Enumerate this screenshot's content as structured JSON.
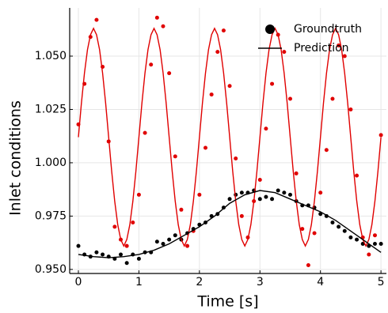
{
  "chart_data": {
    "type": "line",
    "x_label": "Time [s]",
    "y_label": "Inlet conditions",
    "xlim": [
      -0.144,
      5.09
    ],
    "ylim": [
      0.9481,
      1.0726
    ],
    "xticks": [
      0,
      1,
      2,
      3,
      4,
      5
    ],
    "yticks": [
      {
        "value": 0.95,
        "label": "0.950"
      },
      {
        "value": 0.975,
        "label": "0.975"
      },
      {
        "value": 1.0,
        "label": "1.000"
      },
      {
        "value": 1.025,
        "label": "1.025"
      },
      {
        "value": 1.05,
        "label": "1.050"
      }
    ],
    "grid": true,
    "legend": "upper right",
    "series": [
      {
        "type": "scatter",
        "color": "#e00000",
        "x": [
          0,
          0.1,
          0.2,
          0.3,
          0.4,
          0.5,
          0.6,
          0.7,
          0.8,
          0.9,
          1,
          1.1,
          1.2,
          1.3,
          1.4,
          1.5,
          1.6,
          1.7,
          1.8,
          1.9,
          2,
          2.1,
          2.2,
          2.3,
          2.4,
          2.5,
          2.6,
          2.7,
          2.8,
          2.9,
          3,
          3.1,
          3.2,
          3.3,
          3.4,
          3.5,
          3.6,
          3.7,
          3.8,
          3.9,
          4,
          4.1,
          4.2,
          4.3,
          4.4,
          4.5,
          4.6,
          4.7,
          4.8,
          4.9,
          5
        ],
        "values": [
          1.018,
          1.037,
          1.059,
          1.067,
          1.045,
          1.01,
          0.97,
          0.964,
          0.961,
          0.972,
          0.985,
          1.014,
          1.046,
          1.068,
          1.064,
          1.042,
          1.003,
          0.978,
          0.961,
          0.968,
          0.985,
          1.007,
          1.032,
          1.052,
          1.062,
          1.036,
          1.002,
          0.975,
          0.965,
          0.982,
          0.992,
          1.016,
          1.037,
          1.06,
          1.052,
          1.03,
          0.995,
          0.969,
          0.952,
          0.967,
          0.986,
          1.006,
          1.03,
          1.055,
          1.05,
          1.025,
          0.994,
          0.965,
          0.957,
          0.966,
          1.013
        ]
      },
      {
        "type": "scatter",
        "color": "#000000",
        "name": "Groundtruth",
        "x": [
          0,
          0.1,
          0.2,
          0.3,
          0.4,
          0.5,
          0.6,
          0.7,
          0.8,
          0.9,
          1,
          1.1,
          1.2,
          1.3,
          1.4,
          1.5,
          1.6,
          1.7,
          1.8,
          1.9,
          2,
          2.1,
          2.2,
          2.3,
          2.4,
          2.5,
          2.6,
          2.7,
          2.8,
          2.9,
          3,
          3.1,
          3.2,
          3.3,
          3.4,
          3.5,
          3.6,
          3.7,
          3.8,
          3.9,
          4,
          4.1,
          4.2,
          4.3,
          4.4,
          4.5,
          4.6,
          4.7,
          4.8,
          4.9,
          5
        ],
        "values": [
          0.961,
          0.957,
          0.956,
          0.958,
          0.957,
          0.956,
          0.955,
          0.957,
          0.953,
          0.957,
          0.955,
          0.958,
          0.958,
          0.963,
          0.962,
          0.964,
          0.966,
          0.964,
          0.967,
          0.969,
          0.971,
          0.972,
          0.975,
          0.976,
          0.979,
          0.983,
          0.985,
          0.986,
          0.986,
          0.987,
          0.983,
          0.984,
          0.983,
          0.987,
          0.986,
          0.985,
          0.982,
          0.98,
          0.98,
          0.979,
          0.976,
          0.975,
          0.972,
          0.97,
          0.968,
          0.965,
          0.964,
          0.962,
          0.961,
          0.962,
          0.962
        ]
      },
      {
        "type": "line",
        "color": "#e00000",
        "x": [
          0,
          0.05,
          0.1,
          0.15,
          0.2,
          0.25,
          0.3,
          0.35,
          0.4,
          0.45,
          0.5,
          0.55,
          0.6,
          0.65,
          0.7,
          0.75,
          0.8,
          0.85,
          0.9,
          0.95,
          1,
          1.05,
          1.1,
          1.15,
          1.2,
          1.25,
          1.3,
          1.35,
          1.4,
          1.45,
          1.5,
          1.55,
          1.6,
          1.65,
          1.7,
          1.75,
          1.8,
          1.85,
          1.9,
          1.95,
          2,
          2.05,
          2.1,
          2.15,
          2.2,
          2.25,
          2.3,
          2.35,
          2.4,
          2.45,
          2.5,
          2.55,
          2.6,
          2.65,
          2.7,
          2.75,
          2.8,
          2.85,
          2.9,
          2.95,
          3,
          3.05,
          3.1,
          3.15,
          3.2,
          3.25,
          3.3,
          3.35,
          3.4,
          3.45,
          3.5,
          3.55,
          3.6,
          3.65,
          3.7,
          3.75,
          3.8,
          3.85,
          3.9,
          3.95,
          4,
          4.05,
          4.1,
          4.15,
          4.2,
          4.25,
          4.3,
          4.35,
          4.4,
          4.45,
          4.5,
          4.55,
          4.6,
          4.65,
          4.7,
          4.75,
          4.8,
          4.85,
          4.9,
          4.95,
          5
        ],
        "values": [
          1.012,
          1.028,
          1.042,
          1.053,
          1.06,
          1.063,
          1.06,
          1.053,
          1.042,
          1.028,
          1.012,
          0.996,
          0.982,
          0.971,
          0.964,
          0.961,
          0.964,
          0.971,
          0.982,
          0.996,
          1.012,
          1.028,
          1.042,
          1.053,
          1.06,
          1.063,
          1.06,
          1.053,
          1.042,
          1.028,
          1.012,
          0.996,
          0.982,
          0.971,
          0.964,
          0.961,
          0.964,
          0.971,
          0.982,
          0.996,
          1.012,
          1.028,
          1.042,
          1.053,
          1.06,
          1.063,
          1.06,
          1.053,
          1.042,
          1.028,
          1.012,
          0.996,
          0.982,
          0.971,
          0.964,
          0.961,
          0.964,
          0.971,
          0.982,
          0.996,
          1.012,
          1.028,
          1.042,
          1.053,
          1.06,
          1.063,
          1.06,
          1.053,
          1.042,
          1.028,
          1.012,
          0.996,
          0.982,
          0.971,
          0.964,
          0.961,
          0.964,
          0.971,
          0.982,
          0.996,
          1.012,
          1.028,
          1.042,
          1.053,
          1.06,
          1.063,
          1.06,
          1.053,
          1.042,
          1.028,
          1.012,
          0.996,
          0.982,
          0.971,
          0.964,
          0.961,
          0.964,
          0.971,
          0.982,
          0.996,
          1.012
        ]
      },
      {
        "type": "line",
        "color": "#000000",
        "name": "Prediction",
        "x": [
          0,
          0.25,
          0.5,
          0.75,
          1,
          1.25,
          1.5,
          1.75,
          2,
          2.25,
          2.5,
          2.75,
          3,
          3.25,
          3.5,
          3.75,
          4,
          4.25,
          4.5,
          4.75,
          5
        ],
        "values": [
          0.957,
          0.956,
          0.9555,
          0.956,
          0.957,
          0.959,
          0.962,
          0.966,
          0.97,
          0.975,
          0.981,
          0.985,
          0.987,
          0.986,
          0.983,
          0.98,
          0.977,
          0.973,
          0.968,
          0.963,
          0.958
        ]
      }
    ]
  }
}
